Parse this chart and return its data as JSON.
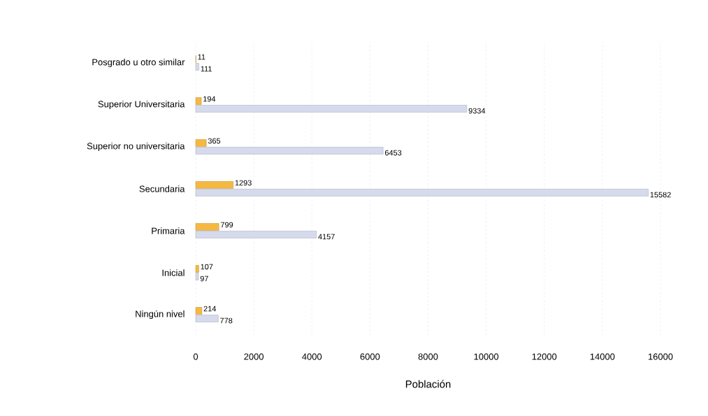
{
  "chart_data": {
    "type": "bar",
    "orientation": "horizontal",
    "xlabel": "Población",
    "categories": [
      "Posgrado u otro similar",
      "Superior Universitaria",
      "Superior no universitaria",
      "Secundaria",
      "Primaria",
      "Inicial",
      "Ningún nivel"
    ],
    "series": [
      {
        "color": "#f5b942",
        "values": [
          11,
          194,
          365,
          1293,
          799,
          107,
          214
        ]
      },
      {
        "color": "#d5daec",
        "values": [
          111,
          9334,
          6453,
          15582,
          4157,
          97,
          778
        ]
      }
    ],
    "xlim": [
      0,
      16000
    ],
    "xticks": [
      0,
      2000,
      4000,
      6000,
      8000,
      10000,
      12000,
      14000,
      16000
    ],
    "grid": "x",
    "data_labels": true
  }
}
